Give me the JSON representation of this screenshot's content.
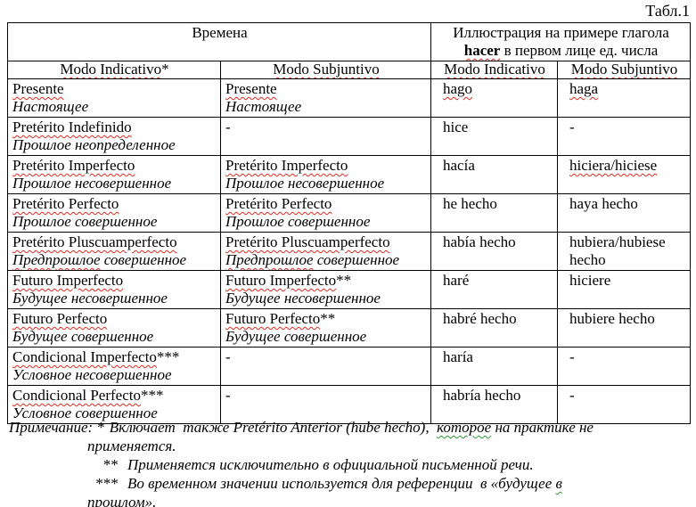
{
  "caption": "Табл.1",
  "colors": {
    "spellcheck_red": "#e02b20",
    "grammar_green": "#2f9a35",
    "border": "#000000"
  },
  "table": {
    "header": {
      "times_label": "Времена",
      "illustration": {
        "line1_segments": [
          {
            "text": "Иллюстрация на примере глагола"
          }
        ],
        "line2_segments": [
          {
            "text": "hacer",
            "bold": true,
            "wavy": "red"
          },
          {
            "text": " в первом лице ед. числа"
          }
        ]
      },
      "mode_columns": [
        {
          "segments": [
            {
              "text": "Modo Indicativo",
              "wavy": "red"
            },
            {
              "text": "*"
            }
          ]
        },
        {
          "segments": [
            {
              "text": "Modo Subjuntivo",
              "wavy": "red"
            }
          ]
        },
        {
          "segments": [
            {
              "text": "Modo Indicativo",
              "wavy": "red"
            }
          ]
        },
        {
          "segments": [
            {
              "text": "Modo Subjuntivo",
              "wavy": "red"
            }
          ]
        }
      ]
    },
    "rows": [
      {
        "cells": [
          {
            "lines": [
              [
                {
                  "text": "Presente",
                  "wavy": "red"
                }
              ],
              [
                {
                  "text": "Настоящее",
                  "italic": true
                }
              ]
            ]
          },
          {
            "lines": [
              [
                {
                  "text": "Presente",
                  "wavy": "red"
                }
              ],
              [
                {
                  "text": "Настоящее",
                  "italic": true
                }
              ]
            ]
          },
          {
            "lines": [
              [
                {
                  "text": "hago",
                  "wavy": "red"
                }
              ]
            ]
          },
          {
            "lines": [
              [
                {
                  "text": "haga",
                  "wavy": "red"
                }
              ]
            ]
          }
        ]
      },
      {
        "cells": [
          {
            "lines": [
              [
                {
                  "text": "Pretérito Indefinido",
                  "wavy": "red"
                }
              ],
              [
                {
                  "text": "Прошлое неопределенное",
                  "italic": true
                }
              ]
            ]
          },
          {
            "lines": [
              [
                {
                  "text": "-"
                }
              ]
            ]
          },
          {
            "lines": [
              [
                {
                  "text": "hice"
                }
              ]
            ]
          },
          {
            "lines": [
              [
                {
                  "text": "-"
                }
              ]
            ]
          }
        ]
      },
      {
        "cells": [
          {
            "lines": [
              [
                {
                  "text": "Pretérito Imperfecto",
                  "wavy": "red"
                }
              ],
              [
                {
                  "text": "Прошлое несовершенное",
                  "italic": true
                }
              ]
            ]
          },
          {
            "lines": [
              [
                {
                  "text": "Pretérito Imperfecto",
                  "wavy": "red"
                }
              ],
              [
                {
                  "text": "Прошлое несовершенное",
                  "italic": true
                }
              ]
            ]
          },
          {
            "lines": [
              [
                {
                  "text": "hacía"
                }
              ]
            ]
          },
          {
            "lines": [
              [
                {
                  "text": "hiciera/hiciese",
                  "wavy": "red"
                }
              ]
            ]
          }
        ]
      },
      {
        "cells": [
          {
            "lines": [
              [
                {
                  "text": "Pretérito Perfecto",
                  "wavy": "red"
                }
              ],
              [
                {
                  "text": "Прошлое совершенное",
                  "italic": true
                }
              ]
            ]
          },
          {
            "lines": [
              [
                {
                  "text": "Pretérito Perfecto",
                  "wavy": "red"
                }
              ],
              [
                {
                  "text": "Прошлое совершенное",
                  "italic": true
                }
              ]
            ]
          },
          {
            "lines": [
              [
                {
                  "text": "he hecho"
                }
              ]
            ]
          },
          {
            "lines": [
              [
                {
                  "text": "haya hecho"
                }
              ]
            ]
          }
        ]
      },
      {
        "cells": [
          {
            "lines": [
              [
                {
                  "text": "Pretérito Pluscuamperfecto",
                  "wavy": "red"
                }
              ],
              [
                {
                  "text": "Предпрошлое",
                  "italic": true,
                  "wavy": "red"
                },
                {
                  "text": " совершенное",
                  "italic": true
                }
              ]
            ]
          },
          {
            "lines": [
              [
                {
                  "text": "Pretérito Pluscuamperfecto",
                  "wavy": "red"
                }
              ],
              [
                {
                  "text": "Предпрошлое",
                  "italic": true,
                  "wavy": "red"
                },
                {
                  "text": " совершенное",
                  "italic": true
                }
              ]
            ]
          },
          {
            "lines": [
              [
                {
                  "text": "había hecho"
                }
              ]
            ]
          },
          {
            "lines": [
              [
                {
                  "text": "hubiera/hubiese hecho"
                }
              ]
            ]
          }
        ]
      },
      {
        "cells": [
          {
            "lines": [
              [
                {
                  "text": "Futuro Imperfecto",
                  "wavy": "red"
                }
              ],
              [
                {
                  "text": "Будущее несовершенное",
                  "italic": true
                }
              ]
            ]
          },
          {
            "lines": [
              [
                {
                  "text": "Futuro Imperfecto",
                  "wavy": "red"
                },
                {
                  "text": "**"
                }
              ],
              [
                {
                  "text": "Будущее несовершенное",
                  "italic": true
                }
              ]
            ]
          },
          {
            "lines": [
              [
                {
                  "text": "haré"
                }
              ]
            ]
          },
          {
            "lines": [
              [
                {
                  "text": "hiciere"
                }
              ]
            ]
          }
        ]
      },
      {
        "cells": [
          {
            "lines": [
              [
                {
                  "text": "Futuro Perfecto",
                  "wavy": "red"
                }
              ],
              [
                {
                  "text": "Будущее совершенное",
                  "italic": true
                }
              ]
            ]
          },
          {
            "lines": [
              [
                {
                  "text": "Futuro Perfecto",
                  "wavy": "red"
                },
                {
                  "text": "**"
                }
              ],
              [
                {
                  "text": "Будущее совершенное",
                  "italic": true
                }
              ]
            ]
          },
          {
            "lines": [
              [
                {
                  "text": "habré hecho"
                }
              ]
            ]
          },
          {
            "lines": [
              [
                {
                  "text": "hubiere hecho"
                }
              ]
            ]
          }
        ]
      },
      {
        "cells": [
          {
            "lines": [
              [
                {
                  "text": "Condicional Imperfecto",
                  "wavy": "red"
                },
                {
                  "text": "***"
                }
              ],
              [
                {
                  "text": "Условное несовершенное",
                  "italic": true
                }
              ]
            ]
          },
          {
            "lines": [
              [
                {
                  "text": "-"
                }
              ]
            ]
          },
          {
            "lines": [
              [
                {
                  "text": "haría"
                }
              ]
            ]
          },
          {
            "lines": [
              [
                {
                  "text": "-"
                }
              ]
            ]
          }
        ]
      },
      {
        "cells": [
          {
            "lines": [
              [
                {
                  "text": "Condicional Perfecto",
                  "wavy": "red"
                },
                {
                  "text": "***"
                }
              ],
              [
                {
                  "text": "Условное совершенное",
                  "italic": true
                }
              ]
            ]
          },
          {
            "lines": [
              [
                {
                  "text": "-"
                }
              ]
            ]
          },
          {
            "lines": [
              [
                {
                  "text": "habría hecho"
                }
              ]
            ]
          },
          {
            "lines": [
              [
                {
                  "text": "-"
                }
              ]
            ]
          }
        ]
      }
    ]
  },
  "note": {
    "label": "Примечание:",
    "lines": [
      {
        "kind": "first",
        "marker": "*",
        "segments": [
          {
            "text": "Включает  также Pretérito Anterior (hube hecho),  "
          },
          {
            "text": "которое",
            "wavy": "green"
          },
          {
            "text": " на практике не"
          }
        ]
      },
      {
        "kind": "cont",
        "segments": [
          {
            "text": "применяется."
          }
        ]
      },
      {
        "kind": "item",
        "marker": "**",
        "segments": [
          {
            "text": "Применяется исключительно в официальной письменной речи."
          }
        ]
      },
      {
        "kind": "item",
        "marker": "***",
        "segments": [
          {
            "text": "Во временном значении используется для референции  в «будущее "
          },
          {
            "text": "в",
            "wavy": "green"
          }
        ]
      },
      {
        "kind": "cont",
        "segments": [
          {
            "text": "прошлом»",
            "wavy": "green"
          },
          {
            "text": "."
          }
        ]
      }
    ]
  }
}
